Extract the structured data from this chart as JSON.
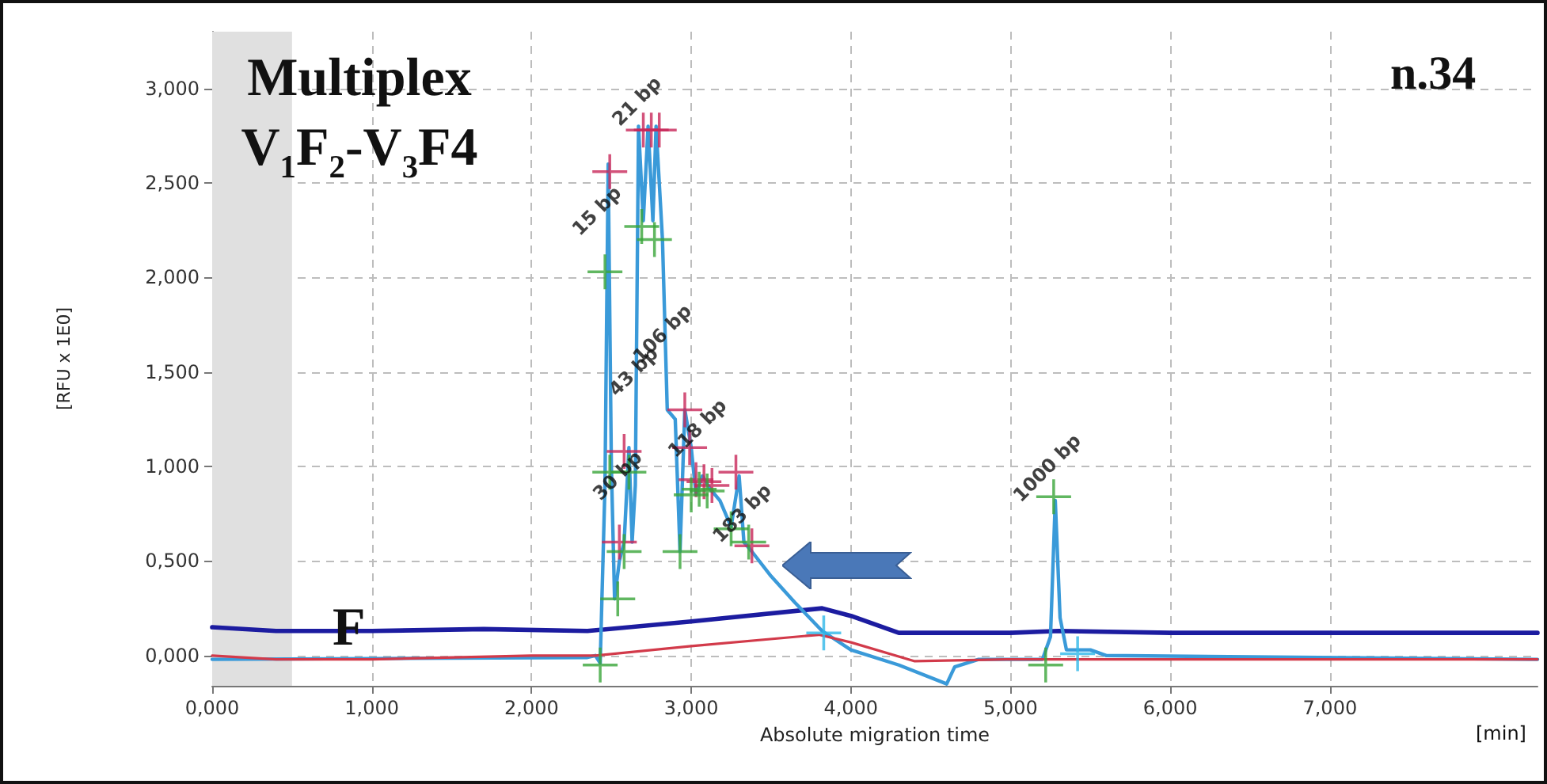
{
  "chart_data": {
    "type": "line",
    "title": "Multiplex V$_{1}$F$_{2}$-V$_{3}$F4",
    "xlabel": "Absolute migration time",
    "ylabel": "[RFU x 1E0]",
    "annotations": [
      "n.34",
      "F",
      "[min]",
      {
        "text": "15 bp",
        "x": 2.45,
        "y": 2.2
      },
      {
        "text": "21 bp",
        "x": 2.7,
        "y": 2.78
      },
      {
        "text": "43 bp",
        "x": 2.68,
        "y": 1.35
      },
      {
        "text": "106 bp",
        "x": 2.86,
        "y": 1.55
      },
      {
        "text": "30 bp",
        "x": 2.58,
        "y": 0.8
      },
      {
        "text": "118 bp",
        "x": 3.08,
        "y": 1.05
      },
      {
        "text": "183 bp",
        "x": 3.36,
        "y": 0.6
      },
      {
        "text": "1000 bp",
        "x": 5.27,
        "y": 0.84
      }
    ],
    "series": [
      {
        "color": "#1c1ca0",
        "marker": "none",
        "x": [
          0,
          0.4,
          1.0,
          1.7,
          2.35,
          3.0,
          3.82,
          4.0,
          4.3,
          5.0,
          5.3,
          6.0,
          8.3
        ],
        "values": [
          0.15,
          0.13,
          0.13,
          0.14,
          0.13,
          0.18,
          0.25,
          0.21,
          0.12,
          0.12,
          0.13,
          0.12,
          0.12
        ]
      },
      {
        "color": "#3a9ad9",
        "marker": "none",
        "x": [
          0,
          2.35,
          2.4,
          2.43,
          2.46,
          2.48,
          2.5,
          2.52,
          2.55,
          2.58,
          2.61,
          2.63,
          2.65,
          2.67,
          2.7,
          2.73,
          2.76,
          2.78,
          2.82,
          2.85,
          2.9,
          2.93,
          2.96,
          3.0,
          3.03,
          3.07,
          3.12,
          3.18,
          3.25,
          3.3,
          3.33,
          3.38,
          3.5,
          3.65,
          3.82,
          4.0,
          4.3,
          4.6,
          4.65,
          4.8,
          5.2,
          5.25,
          5.28,
          5.31,
          5.35,
          5.5,
          5.6,
          8.3
        ],
        "values": [
          -0.02,
          -0.01,
          0.0,
          -0.04,
          0.9,
          2.6,
          1.0,
          0.3,
          0.5,
          0.6,
          1.1,
          0.6,
          0.9,
          2.8,
          2.3,
          2.8,
          2.3,
          2.8,
          2.2,
          1.3,
          1.25,
          0.55,
          1.3,
          1.1,
          0.85,
          0.95,
          0.88,
          0.82,
          0.68,
          0.95,
          0.6,
          0.55,
          0.42,
          0.28,
          0.13,
          0.03,
          -0.05,
          -0.15,
          -0.06,
          -0.02,
          -0.02,
          0.1,
          0.82,
          0.2,
          0.03,
          0.03,
          0.0,
          -0.02
        ]
      },
      {
        "color": "#d23a4a",
        "marker": "none",
        "x": [
          0,
          0.4,
          1.0,
          2.0,
          2.4,
          3.0,
          3.8,
          4.0,
          4.4,
          5.0,
          6.0,
          8.3
        ],
        "values": [
          0.0,
          -0.02,
          -0.02,
          0.0,
          0.0,
          0.05,
          0.11,
          0.07,
          -0.03,
          -0.02,
          -0.02,
          -0.02
        ]
      },
      {
        "type": "scatter",
        "color": "#c8285a",
        "marker": "cross",
        "x": [
          2.49,
          2.7,
          2.75,
          2.8,
          2.55,
          2.58,
          2.96,
          2.99,
          3.03,
          3.08,
          3.13,
          3.28,
          3.38
        ],
        "values": [
          2.56,
          2.78,
          2.78,
          2.78,
          0.6,
          1.08,
          1.3,
          1.1,
          0.93,
          0.92,
          0.9,
          0.97,
          0.58
        ]
      },
      {
        "type": "scatter",
        "color": "#3aa53a",
        "marker": "cross",
        "x": [
          2.43,
          2.46,
          2.49,
          2.54,
          2.58,
          2.61,
          2.69,
          2.77,
          2.93,
          3.0,
          3.05,
          3.1,
          3.25,
          3.36,
          5.22,
          5.27
        ],
        "values": [
          -0.05,
          2.03,
          0.97,
          0.3,
          0.55,
          0.97,
          2.27,
          2.2,
          0.55,
          0.85,
          0.88,
          0.87,
          0.67,
          0.6,
          -0.05,
          0.84
        ]
      },
      {
        "type": "scatter",
        "color": "#30b8e8",
        "marker": "cross",
        "x": [
          3.83,
          5.42
        ],
        "values": [
          0.12,
          0.01
        ]
      }
    ],
    "bands": [
      {
        "axis": "x",
        "from": 0,
        "to": 0.5,
        "color": "#e0e0e0"
      }
    ],
    "xlim": [
      0,
      8.3
    ],
    "xticks": [
      {
        "value": 0,
        "label": "0,000"
      },
      {
        "value": 1,
        "label": "1,000"
      },
      {
        "value": 2,
        "label": "2,000"
      },
      {
        "value": 3,
        "label": "3,000"
      },
      {
        "value": 4,
        "label": "4,000"
      },
      {
        "value": 5,
        "label": "5,000"
      },
      {
        "value": 6,
        "label": "6,000"
      },
      {
        "value": 7,
        "label": "7,000"
      }
    ],
    "ylim": [
      -0.16,
      3.3
    ],
    "yticks": [
      {
        "value": 0,
        "label": "0,000"
      },
      {
        "value": 0.5,
        "label": "0,500"
      },
      {
        "value": 1,
        "label": "1,000"
      },
      {
        "value": 1.5,
        "label": "1,500"
      },
      {
        "value": 2,
        "label": "2,000"
      },
      {
        "value": 2.5,
        "label": "2,500"
      },
      {
        "value": 3,
        "label": "3,000"
      }
    ],
    "grid": true
  }
}
